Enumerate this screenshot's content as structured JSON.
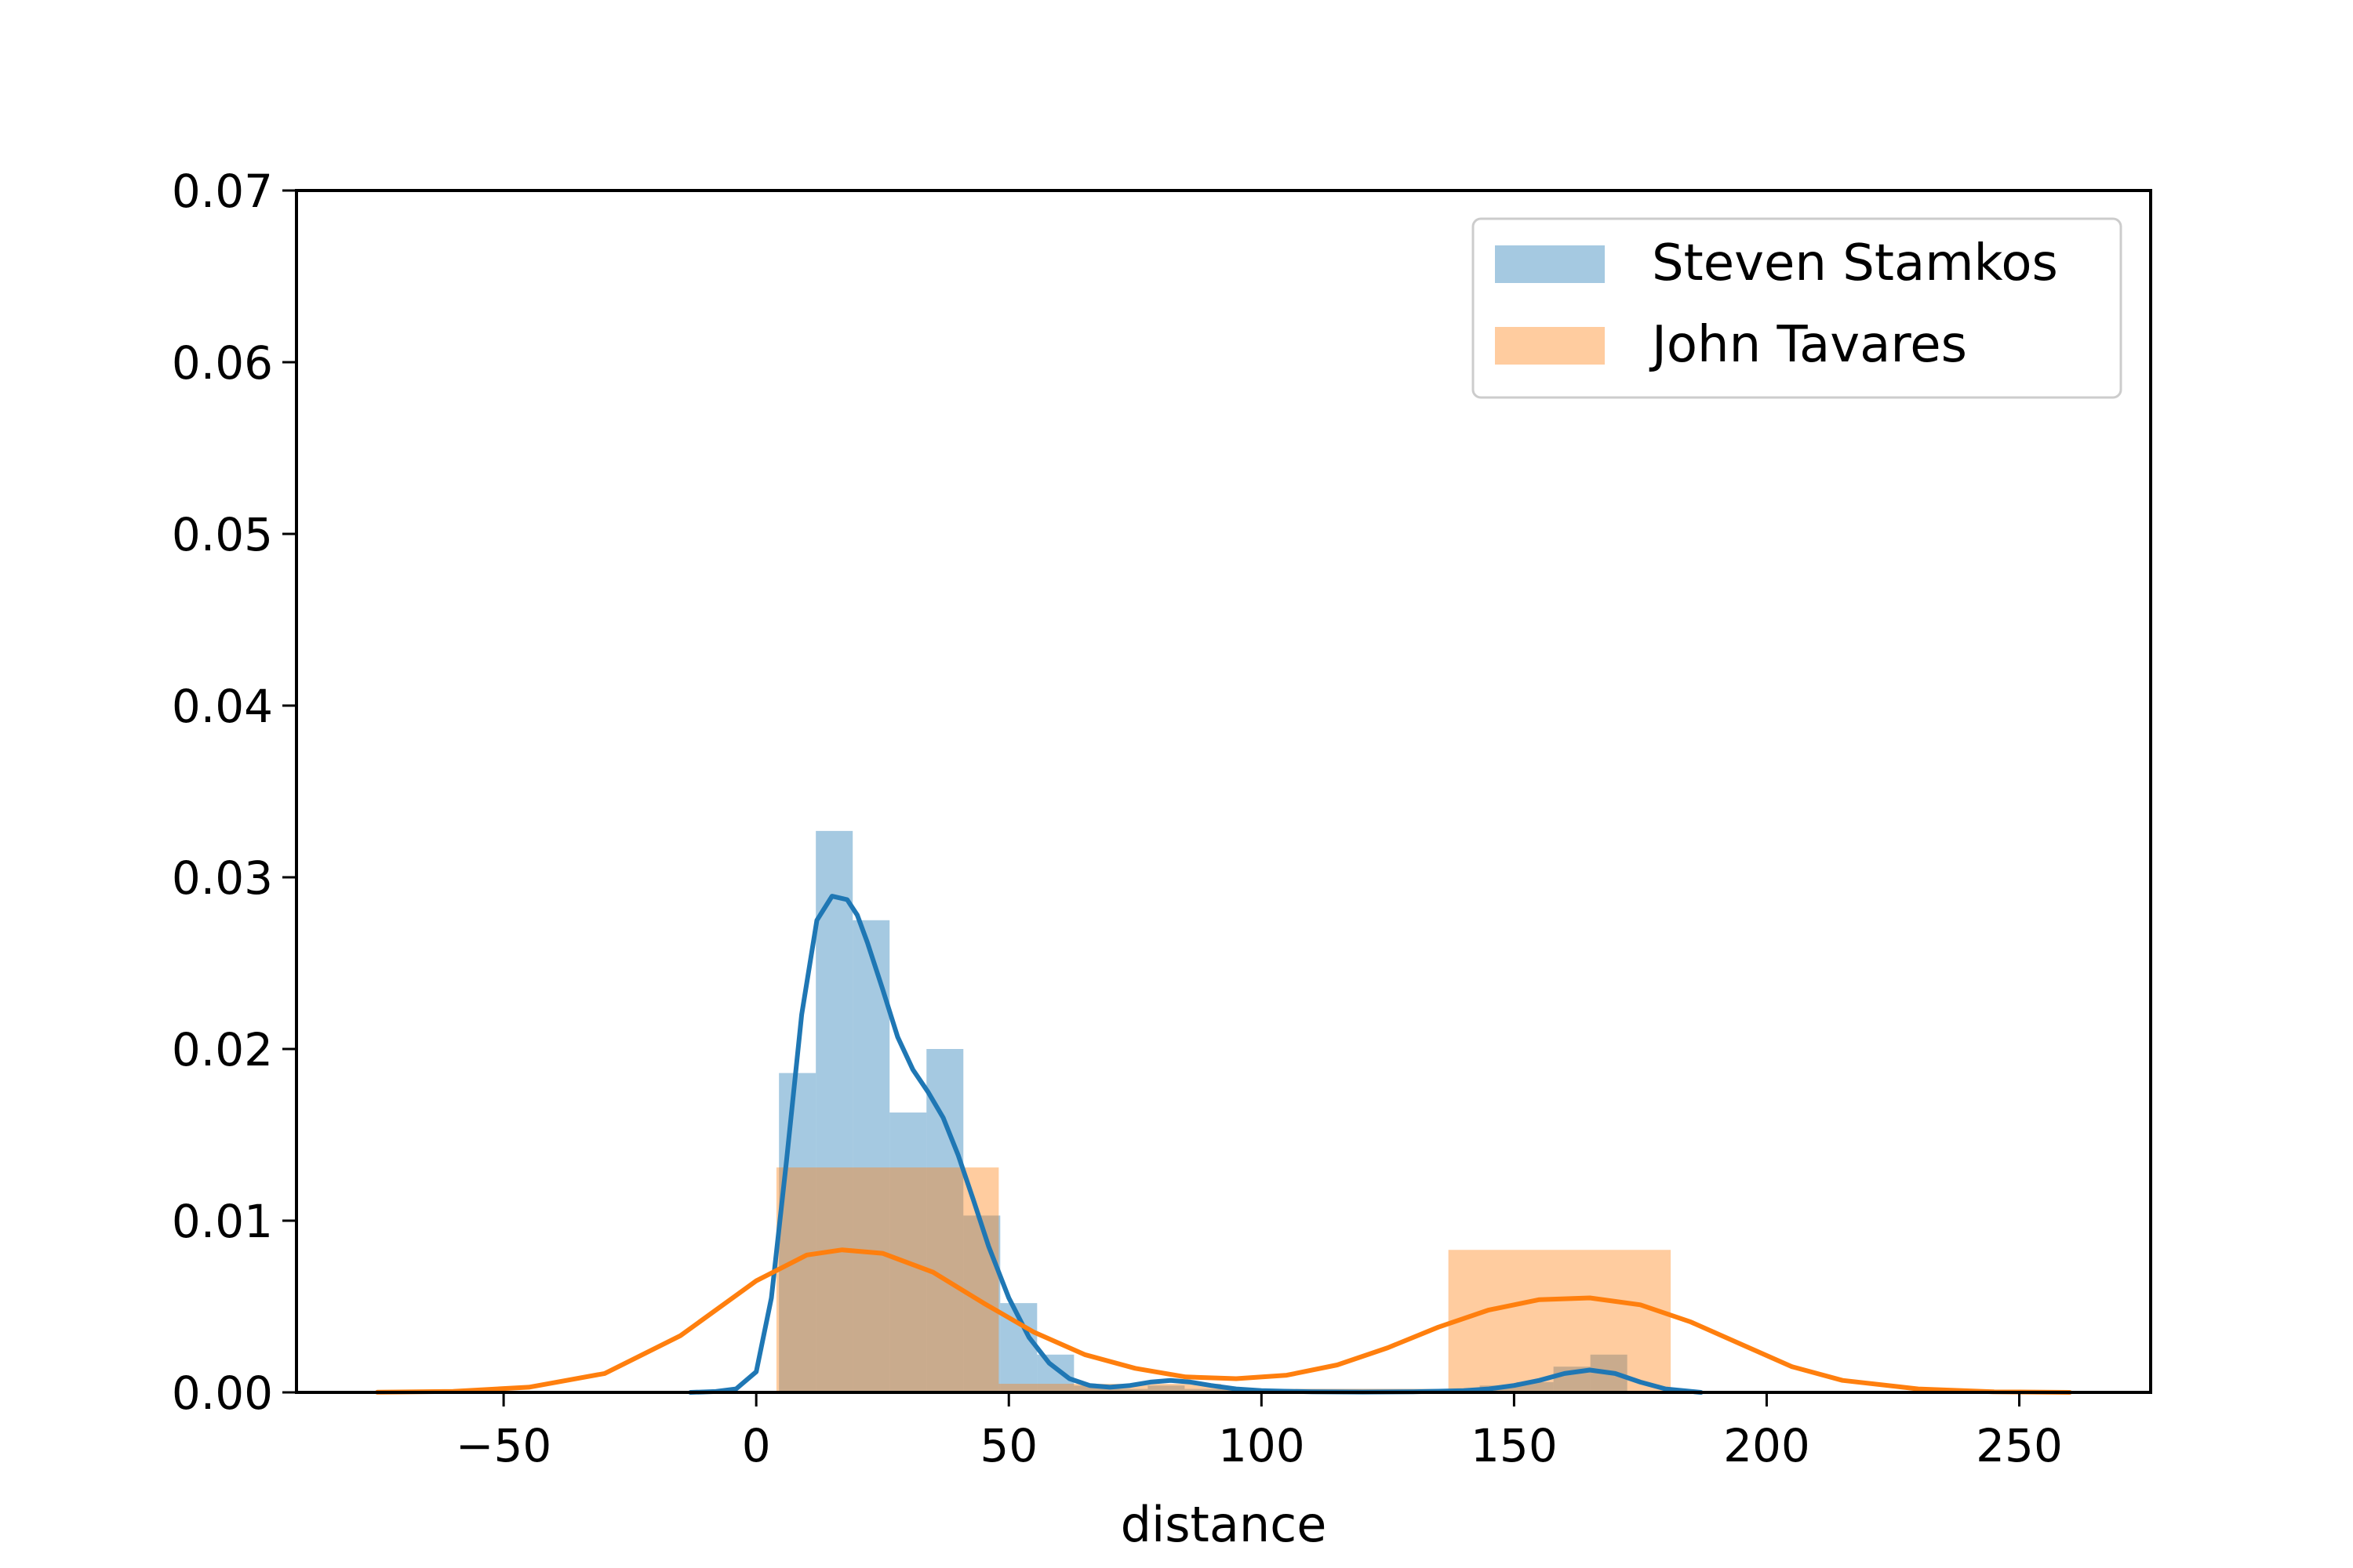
{
  "chart_data": {
    "type": "histogram_kde",
    "title": "",
    "xlabel": "distance",
    "ylabel": "",
    "xlim": [
      -91,
      276
    ],
    "ylim": [
      0,
      0.07
    ],
    "x_ticks": [
      -50,
      0,
      50,
      100,
      150,
      200,
      250
    ],
    "x_tick_labels": [
      "−50",
      "0",
      "50",
      "100",
      "150",
      "200",
      "250"
    ],
    "y_ticks": [
      0,
      0.01,
      0.02,
      0.03,
      0.04,
      0.05,
      0.06,
      0.07
    ],
    "y_tick_labels": [
      "0.00",
      "0.01",
      "0.02",
      "0.03",
      "0.04",
      "0.05",
      "0.06",
      "0.07"
    ],
    "grid": false,
    "legend_position": "top-right",
    "series": [
      {
        "name": "Steven Stamkos",
        "color": "#1f77b4",
        "bar_color": "#1f77b4",
        "bar_alpha": 0.4,
        "histogram": [
          {
            "x0": 4.5,
            "x1": 11.8,
            "density": 0.0186
          },
          {
            "x0": 11.8,
            "x1": 19.1,
            "density": 0.0327
          },
          {
            "x0": 19.1,
            "x1": 26.4,
            "density": 0.0275
          },
          {
            "x0": 26.4,
            "x1": 33.7,
            "density": 0.0163
          },
          {
            "x0": 33.7,
            "x1": 41.0,
            "density": 0.02
          },
          {
            "x0": 41.0,
            "x1": 48.3,
            "density": 0.0103
          },
          {
            "x0": 48.3,
            "x1": 55.6,
            "density": 0.0052
          },
          {
            "x0": 55.6,
            "x1": 62.9,
            "density": 0.0022
          },
          {
            "x0": 62.9,
            "x1": 70.2,
            "density": 0.0004
          },
          {
            "x0": 70.2,
            "x1": 77.5,
            "density": 0.0002
          },
          {
            "x0": 77.5,
            "x1": 84.8,
            "density": 0.0004
          },
          {
            "x0": 84.8,
            "x1": 92.1,
            "density": 0.0002
          },
          {
            "x0": 92.1,
            "x1": 99.4,
            "density": 0.0002
          },
          {
            "x0": 99.4,
            "x1": 106.7,
            "density": 0.0002
          },
          {
            "x0": 106.7,
            "x1": 114.0,
            "density": 0.0002
          },
          {
            "x0": 114.0,
            "x1": 121.3,
            "density": 0.0002
          },
          {
            "x0": 121.3,
            "x1": 128.6,
            "density": 0.0002
          },
          {
            "x0": 128.6,
            "x1": 135.9,
            "density": 0.0002
          },
          {
            "x0": 135.9,
            "x1": 143.2,
            "density": 0.0002
          },
          {
            "x0": 143.2,
            "x1": 150.5,
            "density": 0.0004
          },
          {
            "x0": 150.5,
            "x1": 157.8,
            "density": 0.0006
          },
          {
            "x0": 157.8,
            "x1": 165.1,
            "density": 0.0015
          },
          {
            "x0": 165.1,
            "x1": 172.4,
            "density": 0.0022
          }
        ],
        "kde": {
          "x": [
            -13,
            -8,
            -4,
            0,
            3,
            6,
            9,
            12,
            15,
            18,
            20,
            22,
            25,
            28,
            31,
            34,
            37,
            40,
            43,
            46,
            50,
            54,
            58,
            62,
            66,
            70,
            74,
            78,
            82,
            86,
            90,
            95,
            100,
            110,
            120,
            130,
            140,
            145,
            150,
            155,
            160,
            165,
            170,
            175,
            180,
            187
          ],
          "y": [
            0,
            5e-05,
            0.0002,
            0.0012,
            0.0055,
            0.0135,
            0.022,
            0.0275,
            0.0289,
            0.0287,
            0.0278,
            0.0262,
            0.0235,
            0.0207,
            0.0188,
            0.0175,
            0.016,
            0.0138,
            0.0112,
            0.0085,
            0.0055,
            0.0032,
            0.0017,
            0.0008,
            0.0004,
            0.0003,
            0.0004,
            0.0006,
            0.0007,
            0.0006,
            0.0004,
            0.0002,
            0.0001,
            3e-05,
            2e-05,
            3e-05,
            0.0001,
            0.0002,
            0.0004,
            0.0007,
            0.0011,
            0.0013,
            0.0011,
            0.0006,
            0.0002,
            0
          ]
        }
      },
      {
        "name": "John Tavares",
        "color": "#ff7f0e",
        "bar_color": "#ff7f0e",
        "bar_alpha": 0.4,
        "histogram": [
          {
            "x0": 4.0,
            "x1": 48.0,
            "density": 0.0131
          },
          {
            "x0": 48.0,
            "x1": 92.0,
            "density": 0.0005
          },
          {
            "x0": 92.0,
            "x1": 137.0,
            "density": 0.0002
          },
          {
            "x0": 137.0,
            "x1": 181.0,
            "density": 0.0083
          }
        ],
        "kde": {
          "x": [
            -75,
            -60,
            -45,
            -30,
            -15,
            0,
            10,
            17,
            25,
            35,
            45,
            55,
            65,
            75,
            85,
            95,
            105,
            115,
            125,
            135,
            145,
            155,
            165,
            175,
            185,
            195,
            205,
            215,
            230,
            245,
            260
          ],
          "y": [
            1e-05,
            6e-05,
            0.0003,
            0.0011,
            0.0033,
            0.0065,
            0.008,
            0.0083,
            0.0081,
            0.007,
            0.0052,
            0.0035,
            0.0022,
            0.0014,
            0.0009,
            0.0008,
            0.001,
            0.0016,
            0.0026,
            0.0038,
            0.0048,
            0.0054,
            0.0055,
            0.0051,
            0.0041,
            0.0028,
            0.0015,
            0.0007,
            0.0002,
            3e-05,
            0
          ]
        }
      }
    ]
  }
}
